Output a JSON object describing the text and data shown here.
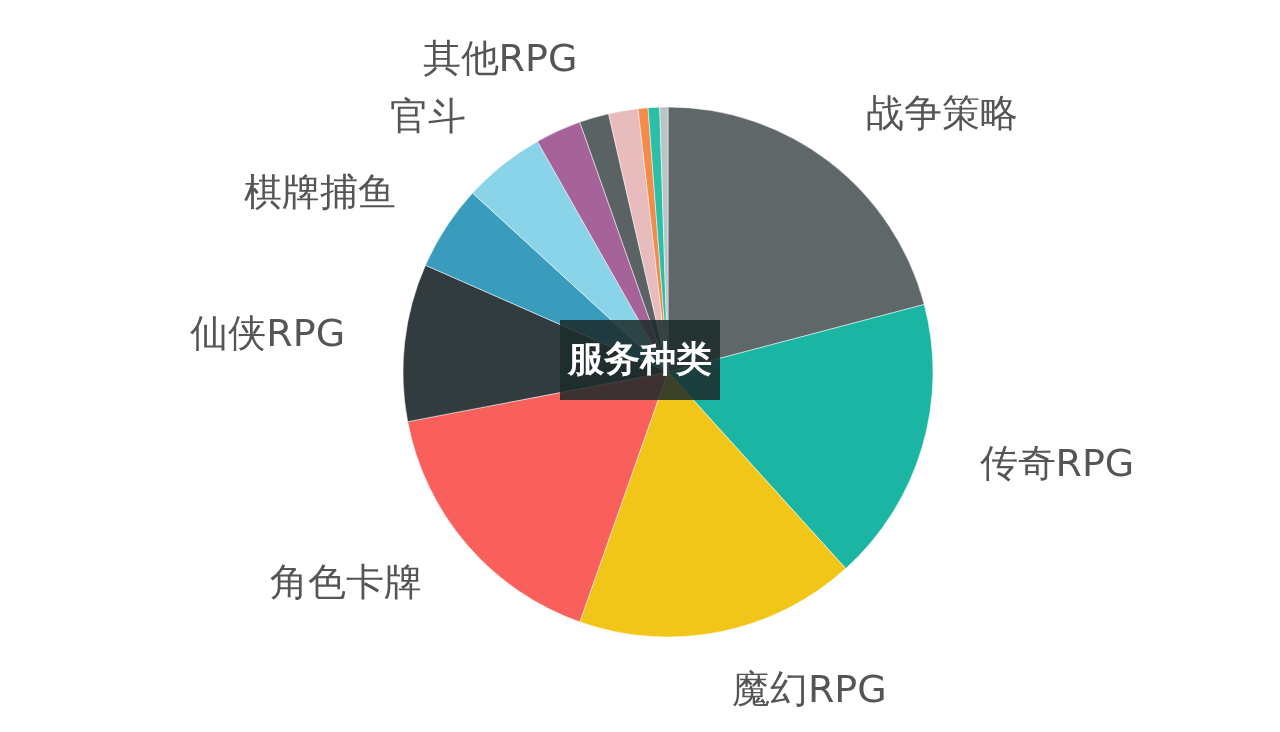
{
  "chart_data": {
    "type": "pie",
    "title": "服务种类",
    "categories": [
      "战争策略",
      "传奇RPG",
      "魔幻RPG",
      "角色卡牌",
      "仙侠RPG",
      "棋牌捕鱼",
      "官斗",
      null,
      "其他RPG",
      null,
      null,
      null,
      null
    ],
    "values": [
      20.9,
      17.4,
      17.1,
      16.6,
      9.6,
      5.2,
      5.0,
      2.8,
      1.8,
      1.8,
      0.6,
      0.7,
      0.5
    ],
    "colors": [
      "#5f6769",
      "#1ab5a3",
      "#f2c618",
      "#f95f5b",
      "#323c3e",
      "#3a9cbd",
      "#8ad4ea",
      "#a5639a",
      "#5b6264",
      "#e8bcbc",
      "#f58a4b",
      "#2bbfa8",
      "#b8c4c6"
    ]
  }
}
